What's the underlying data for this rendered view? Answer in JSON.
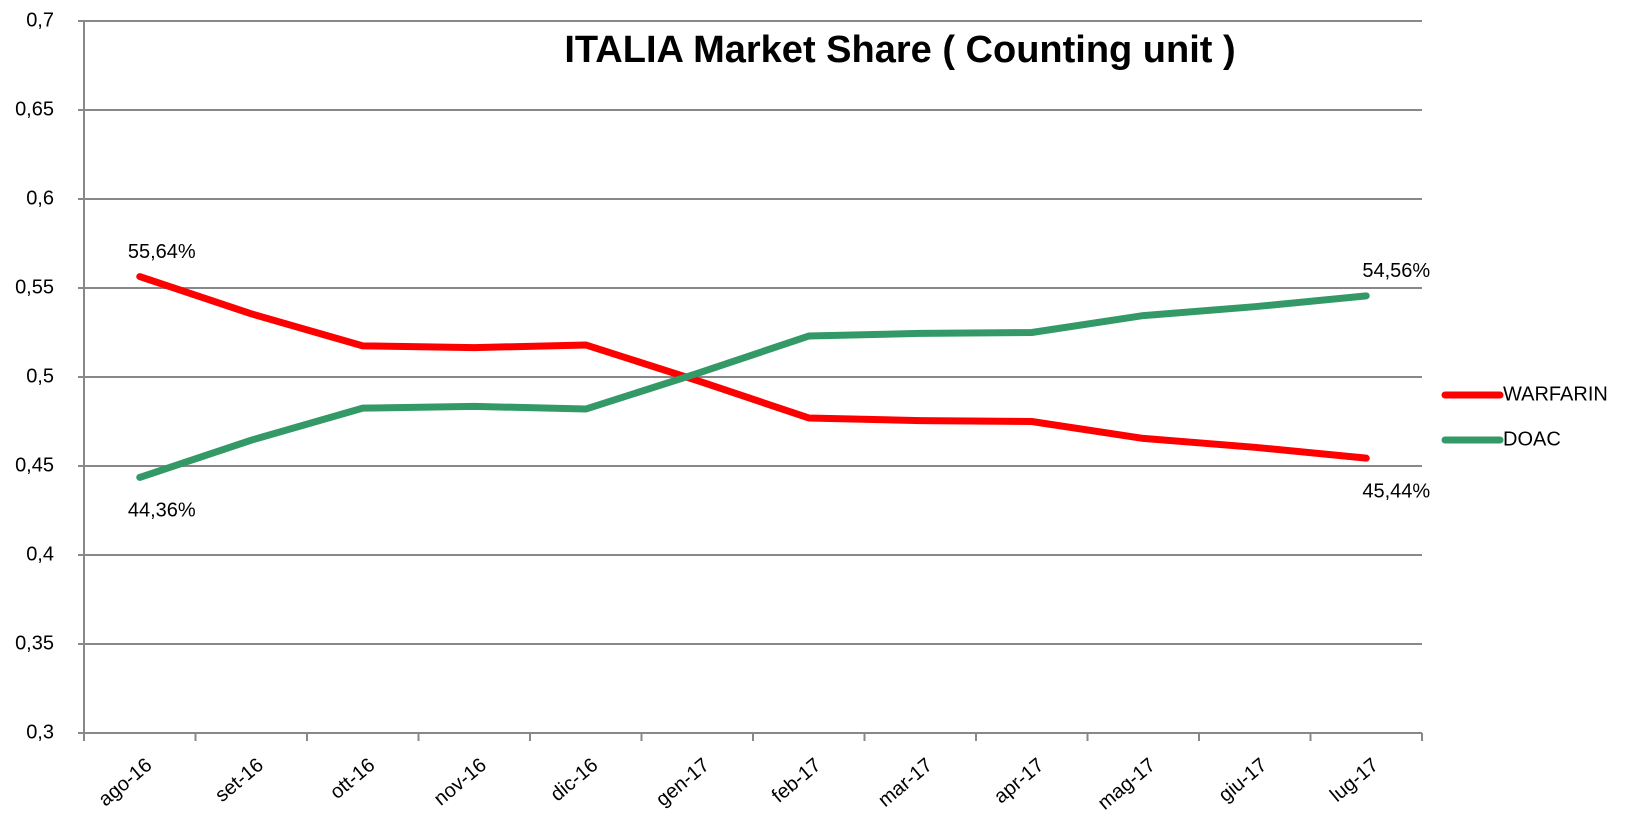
{
  "chart_data": {
    "type": "line",
    "title": "ITALIA Market Share ( Counting unit )",
    "categories": [
      "ago-16",
      "set-16",
      "ott-16",
      "nov-16",
      "dic-16",
      "gen-17",
      "feb-17",
      "mar-17",
      "apr-17",
      "mag-17",
      "giu-17",
      "lug-17"
    ],
    "series": [
      {
        "name": "WARFARIN",
        "color": "#ff0000",
        "values": [
          0.5564,
          0.5355,
          0.5175,
          0.5165,
          0.518,
          0.498,
          0.477,
          0.4755,
          0.475,
          0.4655,
          0.4605,
          0.4544
        ],
        "value_labels": [
          "55,64%",
          null,
          null,
          null,
          null,
          null,
          null,
          null,
          null,
          null,
          null,
          "45,44%"
        ]
      },
      {
        "name": "DOAC",
        "color": "#339966",
        "values": [
          0.4436,
          0.4645,
          0.4825,
          0.4835,
          0.482,
          0.502,
          0.523,
          0.5245,
          0.525,
          0.5345,
          0.5395,
          0.5456
        ],
        "value_labels": [
          "44,36%",
          null,
          null,
          null,
          null,
          null,
          null,
          null,
          null,
          null,
          null,
          "54,56%"
        ]
      }
    ],
    "ylim": [
      0.3,
      0.7
    ],
    "yticks": [
      {
        "value": 0.3,
        "label": "0,3"
      },
      {
        "value": 0.35,
        "label": "0,35"
      },
      {
        "value": 0.4,
        "label": "0,4"
      },
      {
        "value": 0.45,
        "label": "0,45"
      },
      {
        "value": 0.5,
        "label": "0,5"
      },
      {
        "value": 0.55,
        "label": "0,55"
      },
      {
        "value": 0.6,
        "label": "0,6"
      },
      {
        "value": 0.65,
        "label": "0,65"
      },
      {
        "value": 0.7,
        "label": "0,7"
      }
    ],
    "grid": true,
    "legend": "right"
  }
}
